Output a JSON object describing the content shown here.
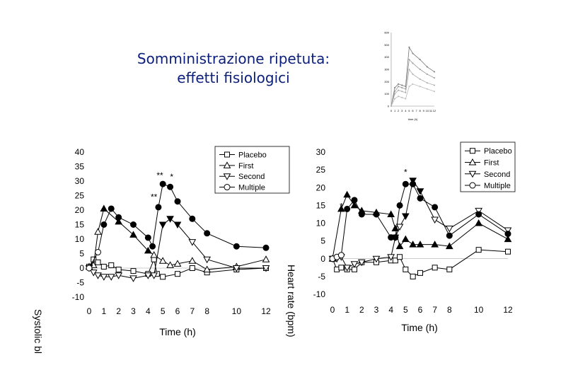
{
  "slide": {
    "title_line1": "Somministrazione ripetuta:",
    "title_line2": "effetti fisiologici"
  },
  "side_labels": {
    "left": "Systolic bl",
    "right": "Heart rate (bpm)"
  },
  "chart_data": [
    {
      "type": "line",
      "xlabel": "Time (h)",
      "ylabel": "Systolic bl",
      "ylim": [
        -10,
        40
      ],
      "yticks": [
        40,
        35,
        30,
        25,
        20,
        15,
        10,
        5,
        0,
        -5,
        -10
      ],
      "xticks": [
        0,
        1,
        2,
        3,
        4,
        5,
        6,
        7,
        8,
        10,
        12
      ],
      "legend_position": "top-right",
      "series": [
        {
          "name": "Placebo",
          "marker": "square-open",
          "points": [
            [
              0,
              0.5
            ],
            [
              0.3,
              3
            ],
            [
              0.6,
              2
            ],
            [
              1,
              0.5
            ],
            [
              1.5,
              1
            ],
            [
              2,
              -0.5
            ],
            [
              3,
              -1
            ],
            [
              4,
              -2
            ],
            [
              4.4,
              3
            ],
            [
              4.6,
              -2
            ],
            [
              5,
              -3
            ],
            [
              6,
              -2
            ],
            [
              7,
              0
            ],
            [
              8,
              -1.5
            ],
            [
              10,
              -0.5
            ],
            [
              12,
              0
            ]
          ]
        },
        {
          "name": "First",
          "marker": "triangle-up-open",
          "points": [
            [
              0,
              0.5
            ],
            [
              0.3,
              1
            ],
            [
              0.6,
              12.5
            ],
            [
              1,
              20.5
            ],
            [
              2,
              16
            ],
            [
              3,
              11.5
            ],
            [
              4,
              6
            ],
            [
              4.4,
              4.5
            ],
            [
              5,
              2.5
            ],
            [
              5.5,
              1
            ],
            [
              6,
              1.5
            ],
            [
              7,
              2.5
            ],
            [
              8,
              -0.5
            ],
            [
              10,
              0.5
            ],
            [
              12,
              3
            ]
          ]
        },
        {
          "name": "Second",
          "marker": "triangle-down-open",
          "points": [
            [
              0,
              0
            ],
            [
              0.3,
              -1.5
            ],
            [
              0.6,
              -2.5
            ],
            [
              1,
              -3
            ],
            [
              1.5,
              -3
            ],
            [
              2,
              -2.5
            ],
            [
              3,
              -3.5
            ],
            [
              4,
              -2.5
            ],
            [
              4.4,
              -2.5
            ],
            [
              5,
              15
            ],
            [
              5.5,
              17
            ],
            [
              6,
              15
            ],
            [
              7,
              9
            ],
            [
              8,
              3
            ],
            [
              10,
              0
            ],
            [
              12,
              0
            ]
          ]
        },
        {
          "name": "Multiple",
          "marker": "circle-open",
          "points": [
            [
              0,
              0
            ],
            [
              0.6,
              5.5
            ],
            [
              1,
              15
            ],
            [
              1.5,
              20.5
            ],
            [
              2,
              17.5
            ],
            [
              3,
              15
            ],
            [
              4,
              10.5
            ],
            [
              4.3,
              7.5
            ],
            [
              4.7,
              21
            ],
            [
              5,
              29
            ],
            [
              5.5,
              28
            ],
            [
              6,
              23
            ],
            [
              7,
              17
            ],
            [
              8,
              12
            ],
            [
              10,
              7.5
            ],
            [
              12,
              7
            ]
          ],
          "solid_from_x": 0.9
        }
      ],
      "annotations": [
        {
          "text": "**",
          "x": 4.8,
          "y": 31
        },
        {
          "text": "*",
          "x": 5.6,
          "y": 30.5
        },
        {
          "text": "**",
          "x": 4.4,
          "y": 23.5
        }
      ]
    },
    {
      "type": "line",
      "xlabel": "Time (h)",
      "ylabel": "Heart rate (bpm)",
      "ylim": [
        -10,
        30
      ],
      "yticks": [
        30,
        25,
        20,
        15,
        10,
        5,
        0,
        -5,
        -10
      ],
      "xticks": [
        0,
        1,
        2,
        3,
        4,
        5,
        6,
        7,
        8,
        10,
        12
      ],
      "legend_position": "top-right",
      "series": [
        {
          "name": "Placebo",
          "marker": "square-open",
          "points": [
            [
              0,
              0
            ],
            [
              0.3,
              -3
            ],
            [
              0.6,
              -2.5
            ],
            [
              1,
              -3
            ],
            [
              1.5,
              -3
            ],
            [
              2,
              -1
            ],
            [
              3,
              -1
            ],
            [
              4,
              -0.5
            ],
            [
              4.3,
              -0.5
            ],
            [
              4.6,
              0.5
            ],
            [
              5,
              -3
            ],
            [
              5.5,
              -5
            ],
            [
              6,
              -4
            ],
            [
              7,
              -2.5
            ],
            [
              8,
              -3
            ],
            [
              10,
              2.5
            ],
            [
              12,
              2
            ]
          ]
        },
        {
          "name": "First",
          "marker": "triangle-up-filled",
          "points": [
            [
              0,
              0
            ],
            [
              0.6,
              14
            ],
            [
              1,
              18
            ],
            [
              1.5,
              15
            ],
            [
              2,
              13.5
            ],
            [
              3,
              13
            ],
            [
              4,
              12.5
            ],
            [
              4.3,
              8.5
            ],
            [
              4.6,
              3.5
            ],
            [
              5,
              5.5
            ],
            [
              5.5,
              4
            ],
            [
              6,
              4
            ],
            [
              7,
              4
            ],
            [
              8,
              3.5
            ],
            [
              10,
              10
            ],
            [
              12,
              5.5
            ]
          ]
        },
        {
          "name": "Second",
          "marker": "triangle-down-open",
          "points": [
            [
              0,
              0
            ],
            [
              0.3,
              0
            ],
            [
              0.6,
              0.5
            ],
            [
              1,
              -2.5
            ],
            [
              1.5,
              -1.5
            ],
            [
              2,
              -1
            ],
            [
              3,
              0
            ],
            [
              4,
              0.5
            ],
            [
              4.3,
              6
            ],
            [
              4.6,
              9
            ],
            [
              5,
              12
            ],
            [
              5.5,
              22
            ],
            [
              6,
              19
            ],
            [
              7,
              11
            ],
            [
              8,
              8.5
            ],
            [
              10,
              13.5
            ],
            [
              12,
              8
            ]
          ]
        },
        {
          "name": "Multiple",
          "marker": "circle-open",
          "points": [
            [
              0,
              0
            ],
            [
              0.3,
              0.5
            ],
            [
              0.6,
              1
            ],
            [
              1,
              14
            ],
            [
              1.5,
              16.5
            ],
            [
              2,
              12.5
            ],
            [
              3,
              12.5
            ],
            [
              4,
              6
            ],
            [
              4.3,
              6
            ],
            [
              4.6,
              15
            ],
            [
              5,
              21
            ],
            [
              5.5,
              21
            ],
            [
              6,
              17
            ],
            [
              7,
              14.5
            ],
            [
              8,
              6.5
            ],
            [
              10,
              12.5
            ],
            [
              12,
              7
            ]
          ],
          "solid_from_x": 0.9
        }
      ],
      "annotations": [
        {
          "text": "*",
          "x": 5,
          "y": 23.5
        },
        {
          "text": "*",
          "x": 0.6,
          "y": 14
        }
      ]
    },
    {
      "type": "line",
      "role": "thumbnail",
      "xlabel": "time (h)",
      "ylim": [
        0,
        600
      ],
      "yticks": [
        600,
        500,
        400,
        300,
        200,
        100,
        0
      ],
      "xticks": [
        0,
        1,
        2,
        3,
        4,
        5,
        6,
        7,
        8,
        9,
        10,
        11,
        12
      ],
      "series": [
        {
          "points": [
            [
              0,
              0
            ],
            [
              1,
              150
            ],
            [
              2,
              180
            ],
            [
              3,
              170
            ],
            [
              4,
              160
            ],
            [
              5,
              480
            ],
            [
              6,
              430
            ],
            [
              8,
              380
            ],
            [
              10,
              320
            ],
            [
              12,
              280
            ]
          ]
        },
        {
          "points": [
            [
              0,
              0
            ],
            [
              1,
              120
            ],
            [
              2,
              160
            ],
            [
              3,
              150
            ],
            [
              4,
              140
            ],
            [
              5,
              380
            ],
            [
              6,
              350
            ],
            [
              8,
              300
            ],
            [
              10,
              260
            ],
            [
              12,
              230
            ]
          ]
        },
        {
          "points": [
            [
              0,
              0
            ],
            [
              1,
              100
            ],
            [
              2,
              130
            ],
            [
              3,
              120
            ],
            [
              4,
              110
            ],
            [
              5,
              300
            ],
            [
              6,
              260
            ],
            [
              8,
              220
            ],
            [
              10,
              190
            ],
            [
              12,
              170
            ]
          ]
        },
        {
          "points": [
            [
              0,
              0
            ],
            [
              1,
              60
            ],
            [
              2,
              80
            ],
            [
              3,
              70
            ],
            [
              4,
              60
            ],
            [
              5,
              160
            ],
            [
              6,
              180
            ],
            [
              8,
              160
            ],
            [
              10,
              140
            ],
            [
              12,
              120
            ]
          ]
        }
      ]
    }
  ]
}
